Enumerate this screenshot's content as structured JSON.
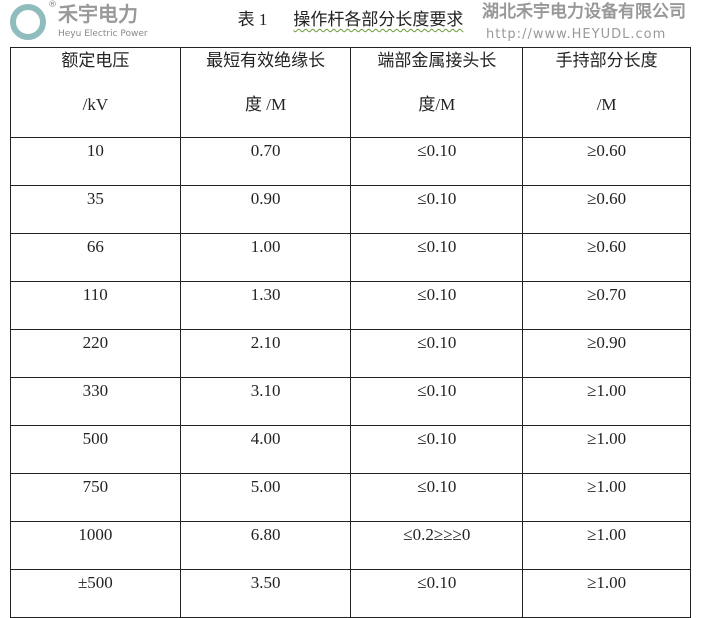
{
  "title": {
    "number": "表 1",
    "text": "操作杆各部分长度要求"
  },
  "headers": [
    {
      "line1": "额定电压",
      "line2": "/kV"
    },
    {
      "line1": "最短有效绝缘长",
      "line2": "度 /M"
    },
    {
      "line1": "端部金属接头长",
      "line2": "度/M"
    },
    {
      "line1": "手持部分长度",
      "line2": "/M"
    }
  ],
  "rows": [
    [
      "10",
      "0.70",
      "≤0.10",
      "≥0.60"
    ],
    [
      "35",
      "0.90",
      "≤0.10",
      "≥0.60"
    ],
    [
      "66",
      "1.00",
      "≤0.10",
      "≥0.60"
    ],
    [
      "110",
      "1.30",
      "≤0.10",
      "≥0.70"
    ],
    [
      "220",
      "2.10",
      "≤0.10",
      "≥0.90"
    ],
    [
      "330",
      "3.10",
      "≤0.10",
      "≥1.00"
    ],
    [
      "500",
      "4.00",
      "≤0.10",
      "≥1.00"
    ],
    [
      "750",
      "5.00",
      "≤0.10",
      "≥1.00"
    ],
    [
      "1000",
      "6.80",
      "≤0.2≥≥≥0",
      "≥1.00"
    ],
    [
      "±500",
      "3.50",
      "≤0.10",
      "≥1.00"
    ]
  ],
  "watermark": {
    "brand": "禾宇电力",
    "brand_en": "Heyu Electric Power",
    "company": "湖北禾宇电力设备有限公司",
    "url": "http://www.HEYUDL.com",
    "registered": "®"
  }
}
